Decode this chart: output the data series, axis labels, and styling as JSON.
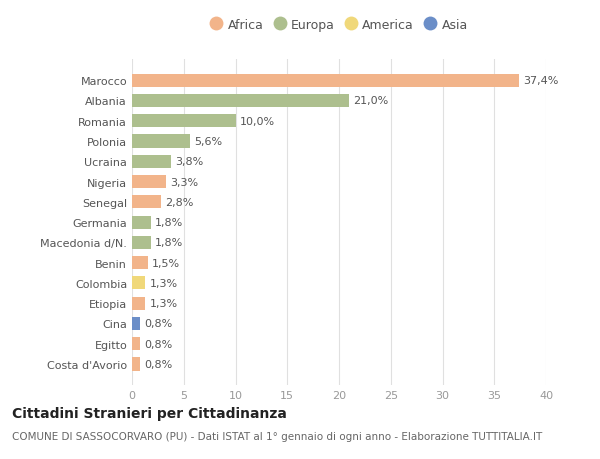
{
  "countries": [
    "Marocco",
    "Albania",
    "Romania",
    "Polonia",
    "Ucraina",
    "Nigeria",
    "Senegal",
    "Germania",
    "Macedonia d/N.",
    "Benin",
    "Colombia",
    "Etiopia",
    "Cina",
    "Egitto",
    "Costa d'Avorio"
  ],
  "values": [
    37.4,
    21.0,
    10.0,
    5.6,
    3.8,
    3.3,
    2.8,
    1.8,
    1.8,
    1.5,
    1.3,
    1.3,
    0.8,
    0.8,
    0.8
  ],
  "labels": [
    "37,4%",
    "21,0%",
    "10,0%",
    "5,6%",
    "3,8%",
    "3,3%",
    "2,8%",
    "1,8%",
    "1,8%",
    "1,5%",
    "1,3%",
    "1,3%",
    "0,8%",
    "0,8%",
    "0,8%"
  ],
  "continents": [
    "Africa",
    "Europa",
    "Europa",
    "Europa",
    "Europa",
    "Africa",
    "Africa",
    "Europa",
    "Europa",
    "Africa",
    "America",
    "Africa",
    "Asia",
    "Africa",
    "Africa"
  ],
  "continent_colors": {
    "Africa": "#F2B48A",
    "Europa": "#ADBF8E",
    "America": "#F0D87A",
    "Asia": "#6B8EC8"
  },
  "legend_order": [
    "Africa",
    "Europa",
    "America",
    "Asia"
  ],
  "title": "Cittadini Stranieri per Cittadinanza",
  "subtitle": "COMUNE DI SASSOCORVARO (PU) - Dati ISTAT al 1° gennaio di ogni anno - Elaborazione TUTTITALIA.IT",
  "xlim": [
    0,
    40
  ],
  "xticks": [
    0,
    5,
    10,
    15,
    20,
    25,
    30,
    35,
    40
  ],
  "bg_color": "#ffffff",
  "plot_bg_color": "#ffffff",
  "grid_color": "#e0e0e0",
  "bar_height": 0.65,
  "title_fontsize": 10,
  "subtitle_fontsize": 7.5,
  "label_fontsize": 8,
  "tick_fontsize": 8,
  "legend_fontsize": 9
}
